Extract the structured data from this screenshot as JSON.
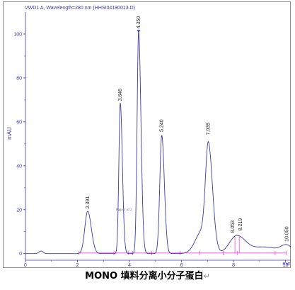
{
  "caption": {
    "text": "MONO 填料分离小分子蛋白",
    "mark": "↵"
  },
  "chart_data": {
    "type": "line",
    "title": "VWD1 A, Wavelength=280 nm (HHSI04180013.D)",
    "ylabel": "mAU",
    "xlabel": "min",
    "xlim": [
      0,
      10.2
    ],
    "ylim": [
      -3,
      110
    ],
    "x_ticks": [
      0,
      2,
      4,
      6,
      8,
      10
    ],
    "x_tick_labels": [
      "0",
      "2",
      "4",
      "6",
      "8",
      "10"
    ],
    "y_ticks": [
      0,
      20,
      40,
      60,
      80,
      100
    ],
    "y_tick_labels": [
      "0",
      "20",
      "40",
      "60",
      "80",
      "100"
    ],
    "annotation": "Page 1 of 2",
    "line_color": "#3a3aa8",
    "baseline_color": "#ee44ee",
    "grid": false,
    "peaks": [
      {
        "rt": 2.391,
        "label": "2.391",
        "height": 19.5
      },
      {
        "rt": 3.646,
        "label": "3.646",
        "height": 68.5
      },
      {
        "rt": 4.35,
        "label": "4.350",
        "height": 101.5
      },
      {
        "rt": 5.24,
        "label": "5.240",
        "height": 54.5
      },
      {
        "rt": 7.035,
        "label": "7.035",
        "height": 53
      },
      {
        "rt": 8.053,
        "label": "8.053",
        "height": 8.5
      },
      {
        "rt": 8.219,
        "label": "8.219",
        "height": 9.5
      },
      {
        "rt": 10.05,
        "label": "10.050",
        "height": 4.5
      }
    ],
    "baseline_markers": [
      2.06,
      3.4,
      3.95,
      4.12,
      4.85,
      5.95,
      6.7,
      7.6,
      8.14,
      9.6,
      10.02
    ]
  }
}
